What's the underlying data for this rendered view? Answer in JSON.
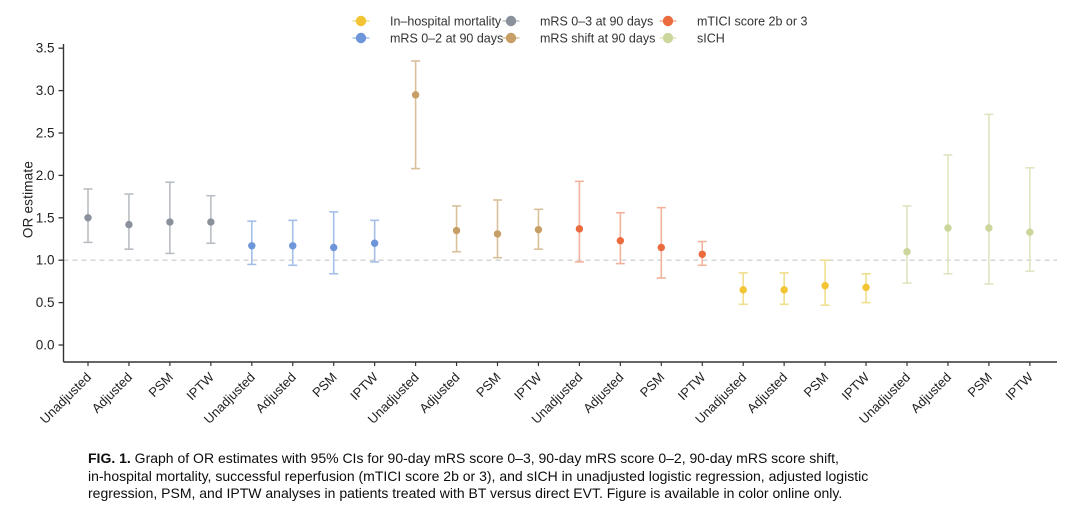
{
  "figure": {
    "ylabel": "OR  estimate",
    "caption": {
      "prefix": "FIG. 1.",
      "line1": " Graph of OR estimates with 95% CIs for 90-day mRS score 0–3, 90-day mRS score 0–2, 90-day mRS score shift,",
      "line2": "in-hospital mortality, successful reperfusion (mTICI score 2b or 3), and sICH in unadjusted logistic regression, adjusted logistic",
      "line3": "regression, PSM, and IPTW analyses in patients treated with BT versus direct EVT. Figure is available in color online only."
    }
  },
  "legend": {
    "position": "top",
    "items": [
      {
        "label": "In–hospital mortality",
        "color": "#f3c433",
        "ci_color": "#efdf8e"
      },
      {
        "label": "mRS 0–2 at 90 days",
        "color": "#6d96da",
        "ci_color": "#a5bfe8"
      },
      {
        "label": "mRS 0–3 at 90 days",
        "color": "#8a919b",
        "ci_color": "#b9bec4"
      },
      {
        "label": "mRS shift at 90 days",
        "color": "#c79e66",
        "ci_color": "#d9c09b"
      },
      {
        "label": "mTICI score 2b or 3",
        "color": "#eb6a3e",
        "ci_color": "#f3b29c"
      },
      {
        "label": "sICH",
        "color": "#cbd69a",
        "ci_color": "#dee5c0"
      }
    ]
  },
  "chart_data": {
    "type": "pointrange-forest",
    "title": "",
    "xlabel": "",
    "ylabel": "OR estimate",
    "ylim": [
      0.0,
      3.5
    ],
    "grid": "off",
    "reference_line": 1.0,
    "legend_position": "top",
    "yticks": [
      {
        "v": 0.0,
        "label": "0.0"
      },
      {
        "v": 0.5,
        "label": "0.5"
      },
      {
        "v": 1.0,
        "label": "1.0"
      },
      {
        "v": 1.5,
        "label": "1.5"
      },
      {
        "v": 2.0,
        "label": "2.0"
      },
      {
        "v": 2.5,
        "label": "2.5"
      },
      {
        "v": 3.0,
        "label": "3.0"
      },
      {
        "v": 3.5,
        "label": "3.5"
      }
    ],
    "x_categories": [
      "Unadjusted",
      "Adjusted",
      "PSM",
      "IPTW"
    ],
    "series": [
      {
        "name": "mRS 0–3 at 90 days",
        "color": "#8a919b",
        "ci_color": "#b9bec4",
        "values": [
          {
            "x": "Unadjusted",
            "or": 1.5,
            "ci": [
              1.21,
              1.84
            ]
          },
          {
            "x": "Adjusted",
            "or": 1.42,
            "ci": [
              1.13,
              1.78
            ]
          },
          {
            "x": "PSM",
            "or": 1.45,
            "ci": [
              1.08,
              1.92
            ]
          },
          {
            "x": "IPTW",
            "or": 1.45,
            "ci": [
              1.2,
              1.76
            ]
          }
        ]
      },
      {
        "name": "mRS 0–2 at 90 days",
        "color": "#6d96da",
        "ci_color": "#a5bfe8",
        "values": [
          {
            "x": "Unadjusted",
            "or": 1.17,
            "ci": [
              0.95,
              1.46
            ]
          },
          {
            "x": "Adjusted",
            "or": 1.17,
            "ci": [
              0.94,
              1.47
            ]
          },
          {
            "x": "PSM",
            "or": 1.15,
            "ci": [
              0.84,
              1.57
            ]
          },
          {
            "x": "IPTW",
            "or": 1.2,
            "ci": [
              0.98,
              1.47
            ]
          }
        ]
      },
      {
        "name": "mRS shift at 90 days",
        "color": "#c79e66",
        "ci_color": "#d9c09b",
        "values": [
          {
            "x": "Unadjusted",
            "or": 2.95,
            "ci": [
              2.08,
              3.35
            ]
          },
          {
            "x": "Adjusted",
            "or": 1.35,
            "ci": [
              1.1,
              1.64
            ]
          },
          {
            "x": "PSM",
            "or": 1.31,
            "ci": [
              1.03,
              1.71
            ]
          },
          {
            "x": "IPTW",
            "or": 1.36,
            "ci": [
              1.13,
              1.6
            ]
          }
        ]
      },
      {
        "name": "mTICI score 2b or 3",
        "color": "#eb6a3e",
        "ci_color": "#f3b29c",
        "values": [
          {
            "x": "Unadjusted",
            "or": 1.37,
            "ci": [
              0.98,
              1.93
            ]
          },
          {
            "x": "Adjusted",
            "or": 1.23,
            "ci": [
              0.96,
              1.56
            ]
          },
          {
            "x": "PSM",
            "or": 1.15,
            "ci": [
              0.79,
              1.62
            ]
          },
          {
            "x": "IPTW",
            "or": 1.07,
            "ci": [
              0.94,
              1.22
            ]
          }
        ]
      },
      {
        "name": "In–hospital mortality",
        "color": "#f3c433",
        "ci_color": "#efdf8e",
        "values": [
          {
            "x": "Unadjusted",
            "or": 0.65,
            "ci": [
              0.48,
              0.85
            ]
          },
          {
            "x": "Adjusted",
            "or": 0.65,
            "ci": [
              0.48,
              0.85
            ]
          },
          {
            "x": "PSM",
            "or": 0.7,
            "ci": [
              0.47,
              1.0
            ]
          },
          {
            "x": "IPTW",
            "or": 0.68,
            "ci": [
              0.5,
              0.84
            ]
          }
        ]
      },
      {
        "name": "sICH",
        "color": "#cbd69a",
        "ci_color": "#dee5c0",
        "values": [
          {
            "x": "Unadjusted",
            "or": 1.1,
            "ci": [
              0.73,
              1.64
            ]
          },
          {
            "x": "Adjusted",
            "or": 1.38,
            "ci": [
              0.84,
              2.24
            ]
          },
          {
            "x": "PSM",
            "or": 1.38,
            "ci": [
              0.72,
              2.72
            ]
          },
          {
            "x": "IPTW",
            "or": 1.33,
            "ci": [
              0.87,
              2.09
            ]
          }
        ]
      }
    ]
  }
}
